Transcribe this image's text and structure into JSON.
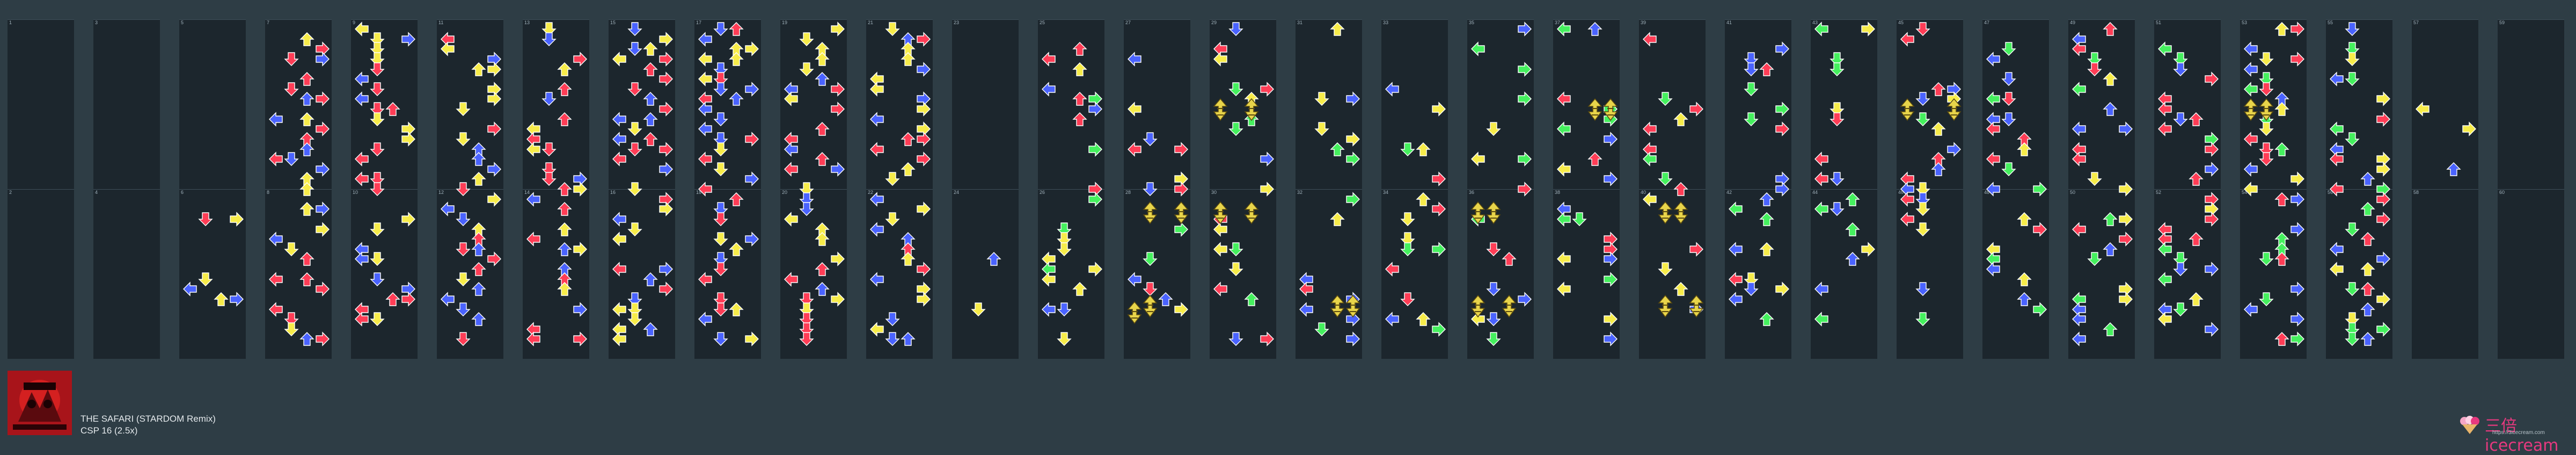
{
  "song": {
    "title": "THE SAFARI (STARDOM Remix)",
    "difficulty": "CSP 16 (2.5x)"
  },
  "brand": {
    "name": "三倍icecream",
    "url": "https://3icecream.com"
  },
  "colors": {
    "background": "#2e3d45",
    "column": "#1c262d",
    "red": "#ff3d56",
    "blue": "#4a63ff",
    "yellow": "#f7ec4a",
    "green": "#45f05e",
    "mine": "#e8d44a"
  },
  "columns": [
    {
      "index": 0,
      "measures": [
        "1",
        "2"
      ]
    },
    {
      "index": 1,
      "measures": [
        "3",
        "4"
      ]
    },
    {
      "index": 2,
      "measures": [
        "5",
        "6"
      ]
    },
    {
      "index": 3,
      "measures": [
        "7",
        "8"
      ]
    },
    {
      "index": 4,
      "measures": [
        "9",
        "10"
      ]
    },
    {
      "index": 5,
      "measures": [
        "11",
        "12"
      ]
    },
    {
      "index": 6,
      "measures": [
        "13",
        "14"
      ]
    },
    {
      "index": 7,
      "measures": [
        "15",
        "16"
      ]
    },
    {
      "index": 8,
      "measures": [
        "17",
        "18"
      ]
    },
    {
      "index": 9,
      "measures": [
        "19",
        "20"
      ]
    },
    {
      "index": 10,
      "measures": [
        "21",
        "22"
      ]
    },
    {
      "index": 11,
      "measures": [
        "23",
        "24"
      ]
    },
    {
      "index": 12,
      "measures": [
        "25",
        "26"
      ]
    },
    {
      "index": 13,
      "measures": [
        "27",
        "28"
      ]
    },
    {
      "index": 14,
      "measures": [
        "29",
        "30"
      ]
    },
    {
      "index": 15,
      "measures": [
        "31",
        "32"
      ]
    },
    {
      "index": 16,
      "measures": [
        "33",
        "34"
      ]
    },
    {
      "index": 17,
      "measures": [
        "35",
        "36"
      ]
    },
    {
      "index": 18,
      "measures": [
        "37",
        "38"
      ]
    },
    {
      "index": 19,
      "measures": [
        "39",
        "40"
      ]
    },
    {
      "index": 20,
      "measures": [
        "41",
        "42"
      ]
    },
    {
      "index": 21,
      "measures": [
        "43",
        "44"
      ]
    },
    {
      "index": 22,
      "measures": [
        "45",
        "46"
      ]
    },
    {
      "index": 23,
      "measures": [
        "47",
        "48"
      ]
    },
    {
      "index": 24,
      "measures": [
        "49",
        "50"
      ]
    },
    {
      "index": 25,
      "measures": [
        "51",
        "52"
      ]
    },
    {
      "index": 26,
      "measures": [
        "53",
        "54"
      ]
    },
    {
      "index": 27,
      "measures": [
        "55",
        "56"
      ]
    },
    {
      "index": 28,
      "measures": [
        "57",
        "58"
      ]
    },
    {
      "index": 29,
      "measures": [
        "59",
        "60"
      ]
    }
  ]
}
